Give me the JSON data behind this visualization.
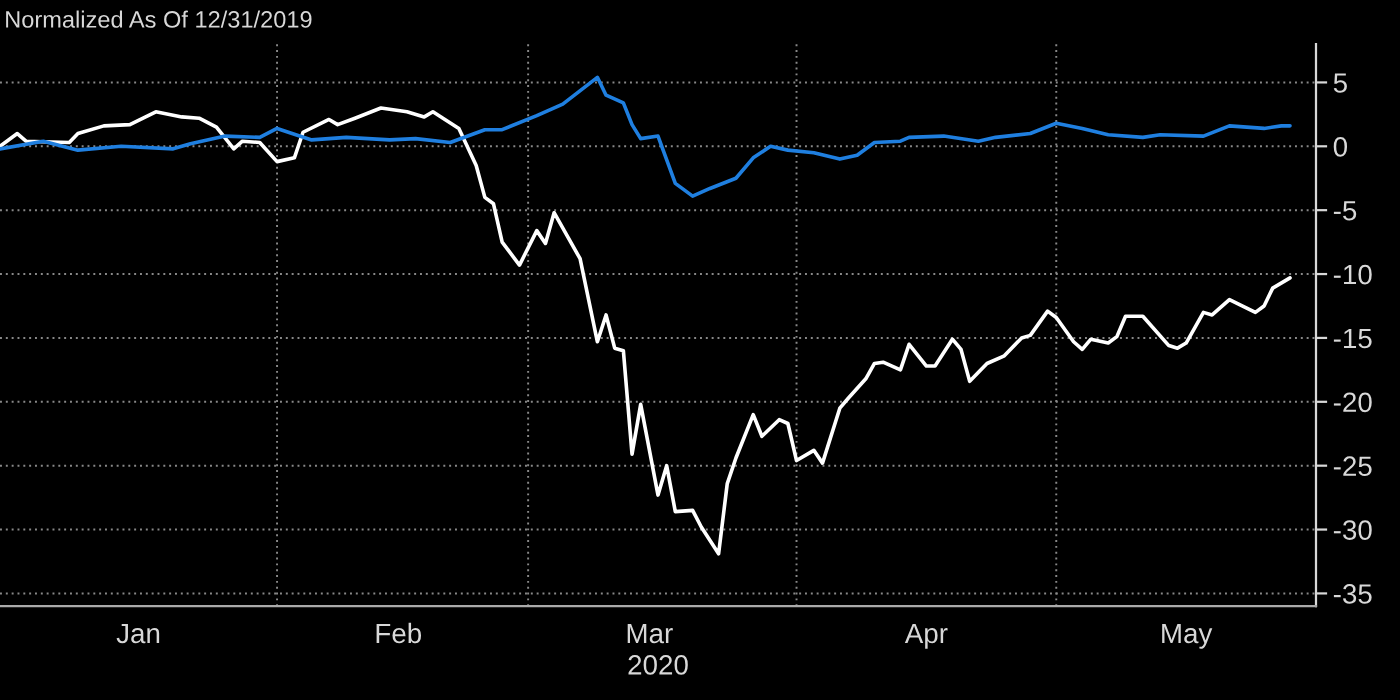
{
  "chart_data": {
    "type": "line",
    "subtitle": "Normalized As Of 12/31/2019",
    "xlabel": "2020",
    "xlim": [
      "2019-12-31",
      "2020-05-31"
    ],
    "xticks": [
      {
        "value": "2020-02-01",
        "label": null
      },
      {
        "value": "2020-03-01",
        "label": null
      },
      {
        "value": "2020-04-01",
        "label": null
      },
      {
        "value": "2020-05-01",
        "label": null
      },
      {
        "value": "2020-01-16",
        "label": "Jan"
      },
      {
        "value": "2020-02-15",
        "label": "Feb"
      },
      {
        "value": "2020-03-15",
        "label": "Mar"
      },
      {
        "value": "2020-04-16",
        "label": "Apr"
      },
      {
        "value": "2020-05-16",
        "label": "May"
      }
    ],
    "ylim": [
      -36,
      8
    ],
    "yticks": [
      5,
      0,
      -5,
      -10,
      -15,
      -20,
      -25,
      -30,
      -35
    ],
    "grid": true,
    "line_style": "solid",
    "marker": "none",
    "series": [
      {
        "color": "#ffffff",
        "x": [
          "2019-12-31",
          "2020-01-02",
          "2020-01-03",
          "2020-01-08",
          "2020-01-09",
          "2020-01-12",
          "2020-01-15",
          "2020-01-18",
          "2020-01-21",
          "2020-01-23",
          "2020-01-25",
          "2020-01-27",
          "2020-01-28",
          "2020-01-30",
          "2020-02-01",
          "2020-02-03",
          "2020-02-04",
          "2020-02-07",
          "2020-02-08",
          "2020-02-10",
          "2020-02-13",
          "2020-02-16",
          "2020-02-18",
          "2020-02-19",
          "2020-02-22",
          "2020-02-24",
          "2020-02-25",
          "2020-02-26",
          "2020-02-27",
          "2020-02-29",
          "2020-03-02",
          "2020-03-03",
          "2020-03-04",
          "2020-03-07",
          "2020-03-09",
          "2020-03-10",
          "2020-03-11",
          "2020-03-12",
          "2020-03-13",
          "2020-03-14",
          "2020-03-16",
          "2020-03-17",
          "2020-03-18",
          "2020-03-20",
          "2020-03-21",
          "2020-03-23",
          "2020-03-24",
          "2020-03-25",
          "2020-03-27",
          "2020-03-28",
          "2020-03-30",
          "2020-03-31",
          "2020-04-01",
          "2020-04-03",
          "2020-04-04",
          "2020-04-06",
          "2020-04-07",
          "2020-04-09",
          "2020-04-10",
          "2020-04-11",
          "2020-04-13",
          "2020-04-14",
          "2020-04-16",
          "2020-04-17",
          "2020-04-19",
          "2020-04-20",
          "2020-04-21",
          "2020-04-23",
          "2020-04-25",
          "2020-04-27",
          "2020-04-28",
          "2020-04-30",
          "2020-05-01",
          "2020-05-03",
          "2020-05-04",
          "2020-05-05",
          "2020-05-07",
          "2020-05-08",
          "2020-05-09",
          "2020-05-11",
          "2020-05-14",
          "2020-05-15",
          "2020-05-16",
          "2020-05-18",
          "2020-05-19",
          "2020-05-21",
          "2020-05-24",
          "2020-05-25",
          "2020-05-26",
          "2020-05-28"
        ],
        "values": [
          0,
          1.0,
          0.4,
          0.3,
          1.0,
          1.6,
          1.7,
          2.7,
          2.3,
          2.2,
          1.5,
          -0.2,
          0.4,
          0.3,
          -1.2,
          -0.9,
          1.1,
          2.1,
          1.7,
          2.2,
          3.0,
          2.7,
          2.3,
          2.7,
          1.4,
          -1.5,
          -4.0,
          -4.5,
          -7.5,
          -9.3,
          -6.6,
          -7.6,
          -5.2,
          -8.8,
          -15.3,
          -13.2,
          -15.8,
          -16.0,
          -24.1,
          -20.2,
          -27.3,
          -25.0,
          -28.6,
          -28.5,
          -29.8,
          -31.9,
          -26.4,
          -24.4,
          -21.0,
          -22.7,
          -21.4,
          -21.7,
          -24.6,
          -23.8,
          -24.8,
          -20.5,
          -19.7,
          -18.2,
          -17.0,
          -16.9,
          -17.5,
          -15.5,
          -17.2,
          -17.2,
          -15.1,
          -15.9,
          -18.4,
          -17.0,
          -16.4,
          -15.0,
          -14.8,
          -12.9,
          -13.4,
          -15.3,
          -15.9,
          -15.1,
          -15.4,
          -14.9,
          -13.3,
          -13.3,
          -15.6,
          -15.8,
          -15.4,
          -13.0,
          -13.2,
          -12.0,
          -13.0,
          -12.5,
          -11.1,
          -10.3
        ]
      },
      {
        "color": "#1f7fe0",
        "x": [
          "2019-12-31",
          "2020-01-05",
          "2020-01-09",
          "2020-01-14",
          "2020-01-20",
          "2020-01-22",
          "2020-01-26",
          "2020-01-30",
          "2020-02-01",
          "2020-02-05",
          "2020-02-09",
          "2020-02-14",
          "2020-02-17",
          "2020-02-21",
          "2020-02-25",
          "2020-02-27",
          "2020-03-02",
          "2020-03-05",
          "2020-03-09",
          "2020-03-10",
          "2020-03-12",
          "2020-03-13",
          "2020-03-14",
          "2020-03-16",
          "2020-03-18",
          "2020-03-20",
          "2020-03-22",
          "2020-03-25",
          "2020-03-27",
          "2020-03-29",
          "2020-03-31",
          "2020-04-03",
          "2020-04-06",
          "2020-04-08",
          "2020-04-10",
          "2020-04-13",
          "2020-04-14",
          "2020-04-18",
          "2020-04-22",
          "2020-04-24",
          "2020-04-28",
          "2020-05-01",
          "2020-05-04",
          "2020-05-07",
          "2020-05-11",
          "2020-05-13",
          "2020-05-18",
          "2020-05-21",
          "2020-05-25",
          "2020-05-27",
          "2020-05-28"
        ],
        "values": [
          -0.2,
          0.4,
          -0.3,
          0,
          -0.2,
          0.2,
          0.8,
          0.7,
          1.4,
          0.5,
          0.7,
          0.5,
          0.6,
          0.3,
          1.3,
          1.3,
          2.4,
          3.3,
          5.4,
          4.0,
          3.4,
          1.7,
          0.6,
          0.8,
          -2.9,
          -3.9,
          -3.3,
          -2.5,
          -0.9,
          0,
          -0.3,
          -0.5,
          -1.0,
          -0.7,
          0.3,
          0.4,
          0.7,
          0.8,
          0.4,
          0.7,
          1.0,
          1.8,
          1.4,
          0.9,
          0.7,
          0.9,
          0.8,
          1.6,
          1.4,
          1.6,
          1.6
        ]
      }
    ]
  }
}
